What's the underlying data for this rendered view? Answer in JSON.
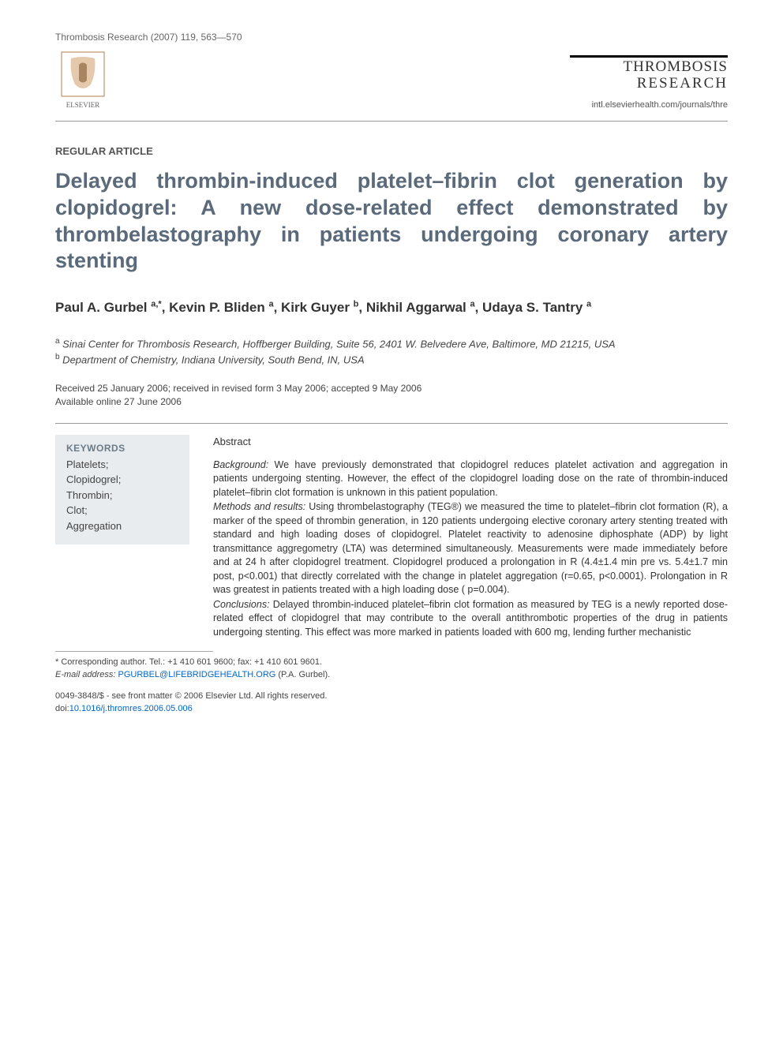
{
  "header": {
    "citation": "Thrombosis Research (2007) 119, 563—570",
    "publisher_name": "ELSEVIER",
    "journal_title_line1": "THROMBOSIS",
    "journal_title_line2": "RESEARCH",
    "journal_url": "intl.elsevierhealth.com/journals/thre"
  },
  "article": {
    "type": "REGULAR ARTICLE",
    "title": "Delayed thrombin-induced platelet–fibrin clot generation by clopidogrel: A new dose-related effect demonstrated by thrombelastography in patients undergoing coronary artery stenting",
    "authors_html": "Paul A. Gurbel <sup>a,*</sup>, Kevin P. Bliden <sup>a</sup>, Kirk Guyer <sup>b</sup>, Nikhil Aggarwal <sup>a</sup>, Udaya S. Tantry <sup>a</sup>",
    "affiliations": [
      {
        "marker": "a",
        "text": "Sinai Center for Thrombosis Research, Hoffberger Building, Suite 56, 2401 W. Belvedere Ave, Baltimore, MD 21215, USA"
      },
      {
        "marker": "b",
        "text": "Department of Chemistry, Indiana University, South Bend, IN, USA"
      }
    ],
    "dates_line1": "Received 25 January 2006; received in revised form 3 May 2006; accepted 9 May 2006",
    "dates_line2": "Available online 27 June 2006"
  },
  "keywords": {
    "heading": "KEYWORDS",
    "items": [
      "Platelets;",
      "Clopidogrel;",
      "Thrombin;",
      "Clot;",
      "Aggregation"
    ]
  },
  "abstract": {
    "heading": "Abstract",
    "sections": [
      {
        "label": "Background:",
        "text": " We have previously demonstrated that clopidogrel reduces platelet activation and aggregation in patients undergoing stenting. However, the effect of the clopidogrel loading dose on the rate of thrombin-induced platelet–fibrin clot formation is unknown in this patient population."
      },
      {
        "label": "Methods and results:",
        "text": " Using thrombelastography (TEG®) we measured the time to platelet–fibrin clot formation (R), a marker of the speed of thrombin generation, in 120 patients undergoing elective coronary artery stenting treated with standard and high loading doses of clopidogrel. Platelet reactivity to adenosine diphosphate (ADP) by light transmittance aggregometry (LTA) was determined simultaneously. Measurements were made immediately before and at 24 h after clopidogrel treatment. Clopidogrel produced a prolongation in R (4.4±1.4 min pre vs. 5.4±1.7 min post, p<0.001) that directly correlated with the change in platelet aggregation (r=0.65, p<0.0001). Prolongation in R was greatest in patients treated with a high loading dose ( p=0.004)."
      },
      {
        "label": "Conclusions:",
        "text": " Delayed thrombin-induced platelet–fibrin clot formation as measured by TEG is a newly reported dose-related effect of clopidogrel that may contribute to the overall antithrombotic properties of the drug in patients undergoing stenting. This effect was more marked in patients loaded with 600 mg, lending further mechanistic"
      }
    ]
  },
  "footer": {
    "corresponding": "* Corresponding author. Tel.: +1 410 601 9600; fax: +1 410 601 9601.",
    "email_label": "E-mail address:",
    "email": "PGURBEL@LIFEBRIDGEHEALTH.ORG",
    "email_suffix": "(P.A. Gurbel).",
    "copyright": "0049-3848/$ - see front matter © 2006 Elsevier Ltd. All rights reserved.",
    "doi_prefix": "doi:",
    "doi": "10.1016/j.thromres.2006.05.006"
  },
  "colors": {
    "title_color": "#5a6a7a",
    "keywords_bg": "#e8ecef",
    "keywords_heading": "#6a7a88",
    "link_color": "#0066cc",
    "text_color": "#333333",
    "muted_text": "#666666"
  },
  "typography": {
    "title_fontsize": 27,
    "authors_fontsize": 17,
    "body_fontsize": 12.5,
    "small_fontsize": 11
  }
}
